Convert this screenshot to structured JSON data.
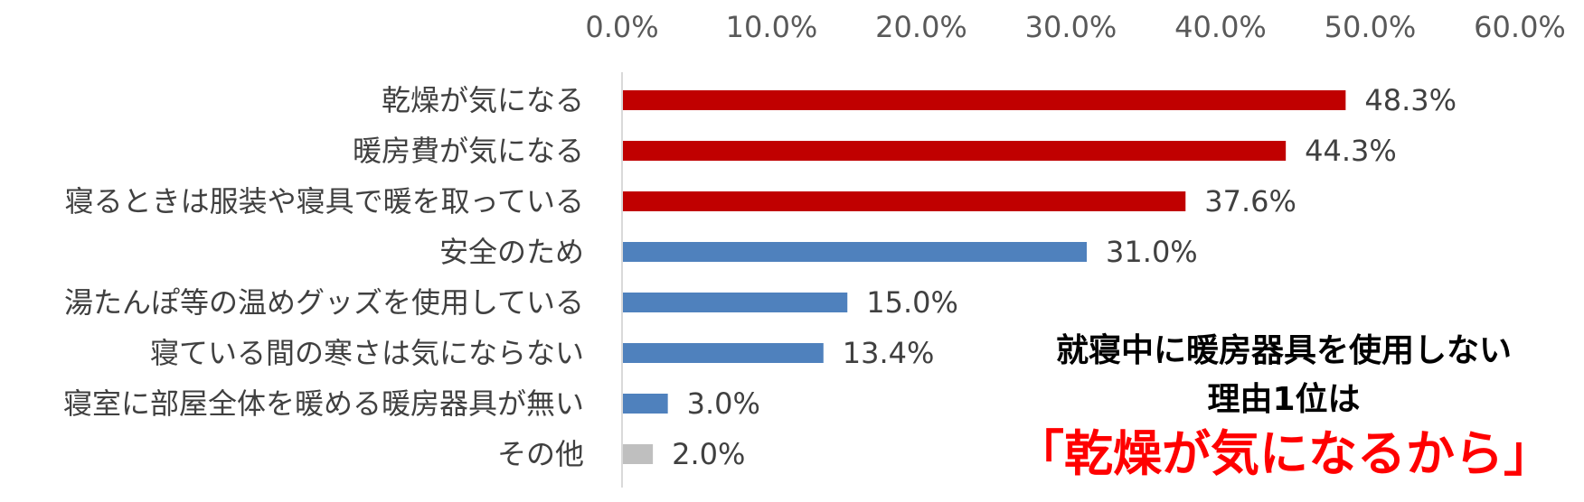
{
  "chart_data": {
    "type": "bar",
    "orientation": "horizontal",
    "categories": [
      "乾燥が気になる",
      "暖房費が気になる",
      "寝るときは服装や寝具で暖を取っている",
      "安全のため",
      "湯たんぽ等の温めグッズを使用している",
      "寝ている間の寒さは気にならない",
      "寝室に部屋全体を暖める暖房器具が無い",
      "その他"
    ],
    "values": [
      48.3,
      44.3,
      37.6,
      31.0,
      15.0,
      13.4,
      3.0,
      2.0
    ],
    "value_labels": [
      "48.3%",
      "44.3%",
      "37.6%",
      "31.0%",
      "15.0%",
      "13.4%",
      "3.0%",
      "2.0%"
    ],
    "bar_colors": [
      "#C00000",
      "#C00000",
      "#C00000",
      "#4F81BD",
      "#4F81BD",
      "#4F81BD",
      "#4F81BD",
      "#BFBFBF"
    ],
    "xlim": [
      0,
      60
    ],
    "x_ticks": [
      0,
      10,
      20,
      30,
      40,
      50,
      60
    ],
    "x_tick_labels": [
      "0.0%",
      "10.0%",
      "20.0%",
      "30.0%",
      "40.0%",
      "50.0%",
      "60.0%"
    ],
    "x_axis_position": "top",
    "grid": false,
    "legend": "none",
    "title": "",
    "xlabel": "",
    "ylabel": ""
  },
  "callout": {
    "line1": "就寝中に暖房器具を使用しない",
    "line2": "理由1位は",
    "highlight": "「乾燥が気になるから」",
    "highlight_color": "#FF0000"
  },
  "colors": {
    "axis_line": "#D9D9D9",
    "tick_text": "#595959",
    "label_text": "#404040"
  }
}
